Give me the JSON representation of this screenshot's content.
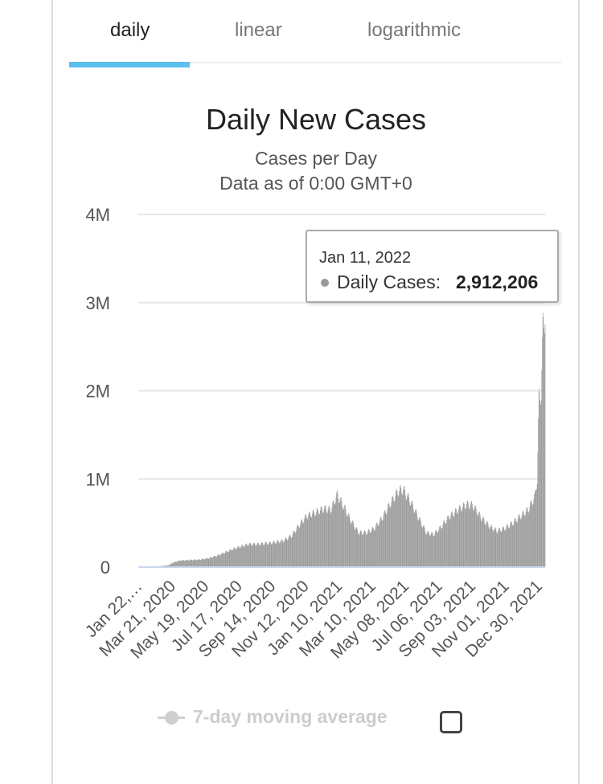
{
  "tabs": [
    {
      "label": "daily",
      "active": true
    },
    {
      "label": "linear",
      "active": false
    },
    {
      "label": "logarithmic",
      "active": false
    }
  ],
  "tooltip": {
    "date": "Jan 11, 2022",
    "series": "Daily Cases:",
    "value": "2,912,206"
  },
  "legend": {
    "label": "7-day moving average",
    "checked": false
  },
  "colors": {
    "bars": "#9a9a9a",
    "accent": "#5bc0f0",
    "grid": "#e6e6e6",
    "baseline": "#ccd6eb"
  },
  "chart_data": {
    "type": "bar",
    "title": "Daily New Cases",
    "subtitle": "Cases per Day",
    "subtitle2": "Data as of 0:00 GMT+0",
    "ylim": [
      0,
      4000000
    ],
    "yticks": [
      0,
      1000000,
      2000000,
      3000000,
      4000000
    ],
    "ytick_labels": [
      "0",
      "1M",
      "2M",
      "3M",
      "4M"
    ],
    "x_range": [
      "2020-01-22",
      "2022-01-11"
    ],
    "xtick_labels": [
      "Jan 22,…",
      "Mar 21, 2020",
      "May 19, 2020",
      "Jul 17, 2020",
      "Sep 14, 2020",
      "Nov 12, 2020",
      "Jan 10, 2021",
      "Mar 10, 2021",
      "May 08, 2021",
      "Jul 06, 2021",
      "Sep 03, 2021",
      "Nov 01, 2021",
      "Dec 30, 2021"
    ],
    "xtick_dates": [
      "2020-01-22",
      "2020-03-21",
      "2020-05-19",
      "2020-07-17",
      "2020-09-14",
      "2020-11-12",
      "2021-01-10",
      "2021-03-10",
      "2021-05-08",
      "2021-07-06",
      "2021-09-03",
      "2021-11-01",
      "2021-12-30"
    ],
    "series": [
      {
        "name": "Daily Cases",
        "points": [
          [
            "2020-01-22",
            500
          ],
          [
            "2020-02-15",
            3000
          ],
          [
            "2020-03-15",
            20000
          ],
          [
            "2020-03-25",
            55000
          ],
          [
            "2020-04-05",
            75000
          ],
          [
            "2020-04-20",
            80000
          ],
          [
            "2020-05-10",
            85000
          ],
          [
            "2020-05-25",
            100000
          ],
          [
            "2020-06-10",
            130000
          ],
          [
            "2020-06-25",
            170000
          ],
          [
            "2020-07-10",
            210000
          ],
          [
            "2020-07-25",
            240000
          ],
          [
            "2020-08-05",
            260000
          ],
          [
            "2020-08-20",
            260000
          ],
          [
            "2020-09-05",
            270000
          ],
          [
            "2020-09-20",
            280000
          ],
          [
            "2020-10-05",
            300000
          ],
          [
            "2020-10-20",
            360000
          ],
          [
            "2020-11-01",
            470000
          ],
          [
            "2020-11-15",
            580000
          ],
          [
            "2020-12-01",
            620000
          ],
          [
            "2020-12-15",
            660000
          ],
          [
            "2020-12-28",
            650000
          ],
          [
            "2021-01-08",
            820000
          ],
          [
            "2021-01-20",
            680000
          ],
          [
            "2021-02-01",
            530000
          ],
          [
            "2021-02-15",
            390000
          ],
          [
            "2021-03-01",
            390000
          ],
          [
            "2021-03-15",
            440000
          ],
          [
            "2021-03-29",
            560000
          ],
          [
            "2021-04-12",
            720000
          ],
          [
            "2021-04-26",
            860000
          ],
          [
            "2021-05-05",
            880000
          ],
          [
            "2021-05-18",
            740000
          ],
          [
            "2021-06-01",
            560000
          ],
          [
            "2021-06-15",
            390000
          ],
          [
            "2021-06-28",
            370000
          ],
          [
            "2021-07-10",
            450000
          ],
          [
            "2021-07-25",
            570000
          ],
          [
            "2021-08-10",
            650000
          ],
          [
            "2021-08-25",
            710000
          ],
          [
            "2021-09-05",
            700000
          ],
          [
            "2021-09-20",
            560000
          ],
          [
            "2021-10-05",
            460000
          ],
          [
            "2021-10-18",
            410000
          ],
          [
            "2021-11-01",
            440000
          ],
          [
            "2021-11-15",
            500000
          ],
          [
            "2021-11-29",
            580000
          ],
          [
            "2021-12-12",
            650000
          ],
          [
            "2021-12-24",
            800000
          ],
          [
            "2021-12-28",
            1000000
          ],
          [
            "2021-12-31",
            1900000
          ],
          [
            "2022-01-04",
            2000000
          ],
          [
            "2022-01-07",
            2700000
          ],
          [
            "2022-01-10",
            2850000
          ],
          [
            "2022-01-11",
            2912206
          ]
        ]
      }
    ]
  }
}
